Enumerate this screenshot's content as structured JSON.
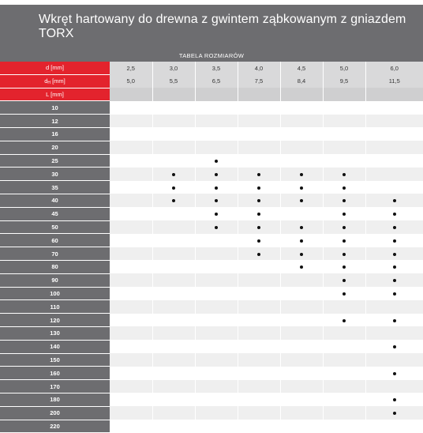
{
  "title": "Wkręt hartowany do drewna z gwintem ząbkowanym z gniazdem TORX",
  "subtitle": "TABELA ROZMIARÓW",
  "header_rows": [
    {
      "label_main": "d [mm]",
      "label_sub": "",
      "label_tail": "",
      "values": [
        "2,5",
        "3,0",
        "3,5",
        "4,0",
        "4,5",
        "5,0",
        "6,0"
      ]
    },
    {
      "label_main": "d",
      "label_sub": "H",
      "label_tail": " [mm]",
      "values": [
        "5,0",
        "5,5",
        "6,5",
        "7,5",
        "8,4",
        "9,5",
        "11,5"
      ]
    },
    {
      "label_main": "L [mm]",
      "label_sub": "",
      "label_tail": "",
      "values": [
        "",
        "",
        "",
        "",
        "",
        "",
        ""
      ]
    }
  ],
  "lengths": [
    "10",
    "12",
    "16",
    "20",
    "25",
    "30",
    "35",
    "40",
    "45",
    "50",
    "60",
    "70",
    "80",
    "90",
    "100",
    "110",
    "120",
    "130",
    "140",
    "150",
    "160",
    "170",
    "180",
    "200",
    "220"
  ],
  "availability": [
    [
      0,
      0,
      0,
      0,
      0,
      0,
      0
    ],
    [
      0,
      0,
      0,
      0,
      0,
      0,
      0
    ],
    [
      0,
      0,
      0,
      0,
      0,
      0,
      0
    ],
    [
      0,
      0,
      0,
      0,
      0,
      0,
      0
    ],
    [
      0,
      0,
      1,
      0,
      0,
      0,
      0
    ],
    [
      0,
      1,
      1,
      1,
      1,
      1,
      0
    ],
    [
      0,
      1,
      1,
      1,
      1,
      1,
      0
    ],
    [
      0,
      1,
      1,
      1,
      1,
      1,
      1
    ],
    [
      0,
      0,
      1,
      1,
      0,
      1,
      1
    ],
    [
      0,
      0,
      1,
      1,
      1,
      1,
      1
    ],
    [
      0,
      0,
      0,
      1,
      1,
      1,
      1
    ],
    [
      0,
      0,
      0,
      1,
      1,
      1,
      1
    ],
    [
      0,
      0,
      0,
      0,
      1,
      1,
      1
    ],
    [
      0,
      0,
      0,
      0,
      0,
      1,
      1
    ],
    [
      0,
      0,
      0,
      0,
      0,
      1,
      1
    ],
    [
      0,
      0,
      0,
      0,
      0,
      0,
      0
    ],
    [
      0,
      0,
      0,
      0,
      0,
      1,
      1
    ],
    [
      0,
      0,
      0,
      0,
      0,
      0,
      0
    ],
    [
      0,
      0,
      0,
      0,
      0,
      0,
      1
    ],
    [
      0,
      0,
      0,
      0,
      0,
      0,
      0
    ],
    [
      0,
      0,
      0,
      0,
      0,
      0,
      1
    ],
    [
      0,
      0,
      0,
      0,
      0,
      0,
      0
    ],
    [
      0,
      0,
      0,
      0,
      0,
      0,
      1
    ],
    [
      0,
      0,
      0,
      0,
      0,
      0,
      1
    ],
    [
      0,
      0,
      0,
      0,
      0,
      0,
      0
    ]
  ],
  "colors": {
    "header_gray": "#6d6d70",
    "accent_red": "#e3232d",
    "stripe": "#efefef",
    "dot": "#111111"
  }
}
